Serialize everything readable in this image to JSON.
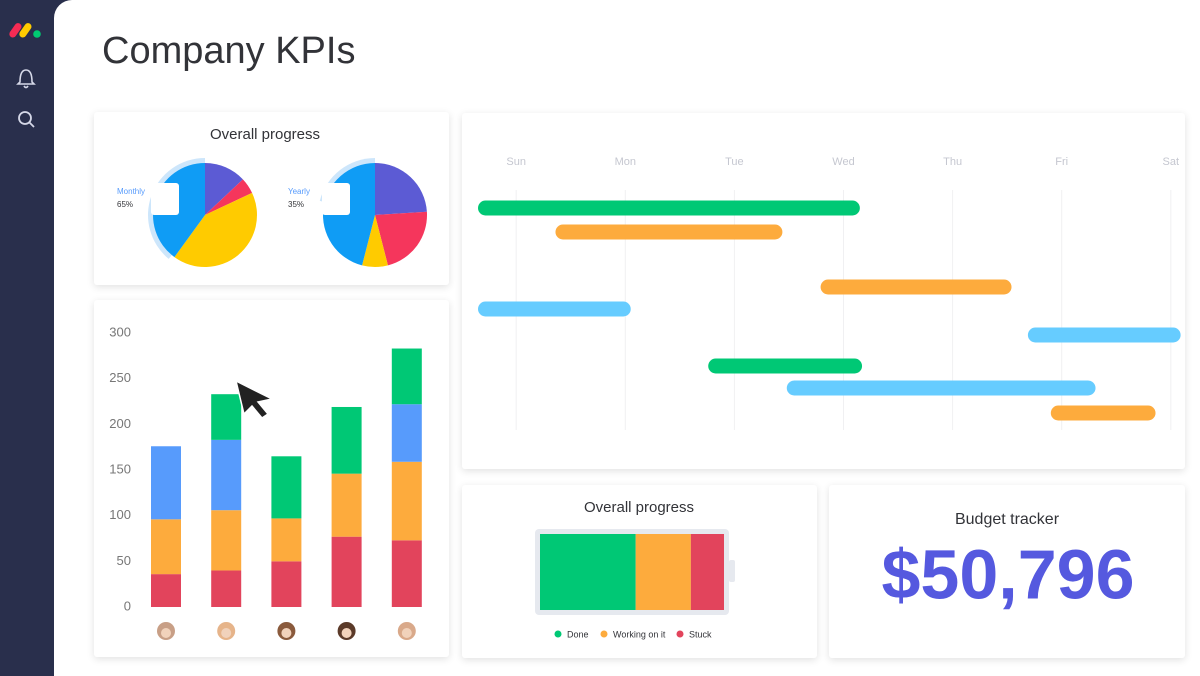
{
  "page_title": "Company KPIs",
  "chart_data": [
    {
      "type": "pie",
      "title": "Overall progress",
      "name": "Monthly",
      "summary": {
        "value": 65,
        "label": "65%"
      },
      "values": [
        13,
        5,
        42,
        40
      ],
      "colors": [
        "#5c5bd4",
        "#f5365c",
        "#ffcb00",
        "#0f9cf5"
      ]
    },
    {
      "type": "pie",
      "name": "Yearly",
      "summary": {
        "value": 35,
        "label": "35%"
      },
      "values": [
        24,
        22,
        8,
        46
      ],
      "colors": [
        "#5c5bd4",
        "#f5365c",
        "#ffcb00",
        "#0f9cf5"
      ]
    },
    {
      "type": "bar",
      "stacked": true,
      "categories": [
        null,
        null,
        null,
        null,
        null
      ],
      "series": [
        {
          "color": "#e2445c",
          "values": [
            36,
            40,
            50,
            77,
            73
          ]
        },
        {
          "color": "#fdab3d",
          "values": [
            60,
            66,
            47,
            69,
            86
          ]
        },
        {
          "color": "#579bfc",
          "values": [
            80,
            77,
            0,
            0,
            63
          ]
        },
        {
          "color": "#00c875",
          "values": [
            0,
            50,
            68,
            73,
            61
          ]
        }
      ],
      "ylim": [
        0,
        300
      ],
      "yticks": [
        0,
        50,
        100,
        150,
        200,
        250,
        300
      ]
    },
    {
      "type": "gantt",
      "xlim": [
        -0.35,
        6.13
      ],
      "xticks": [
        {
          "value": 0,
          "label": "Sun"
        },
        {
          "value": 1,
          "label": "Mon"
        },
        {
          "value": 2,
          "label": "Tue"
        },
        {
          "value": 3,
          "label": "Wed"
        },
        {
          "value": 4,
          "label": "Thu"
        },
        {
          "value": 5,
          "label": "Fri"
        },
        {
          "value": 6,
          "label": "Sat"
        }
      ],
      "tasks": [
        {
          "start": -0.35,
          "end": 3.15,
          "color": "#00c875"
        },
        {
          "start": 0.36,
          "end": 2.44,
          "color": "#fdab3d"
        },
        {
          "start": 2.79,
          "end": 4.54,
          "color": "#fdab3d"
        },
        {
          "start": -0.35,
          "end": 1.05,
          "color": "#66ccff"
        },
        {
          "start": 4.69,
          "end": 6.09,
          "color": "#66ccff"
        },
        {
          "start": 1.76,
          "end": 3.17,
          "color": "#00c875"
        },
        {
          "start": 2.48,
          "end": 5.31,
          "color": "#66ccff"
        },
        {
          "start": 4.9,
          "end": 5.86,
          "color": "#fdab3d"
        }
      ]
    },
    {
      "type": "battery",
      "title": "Overall progress",
      "xlim": [
        0,
        100
      ],
      "series": [
        {
          "name": "Done",
          "color": "#00c875",
          "values": [
            52
          ]
        },
        {
          "name": "Working on it",
          "color": "#fdab3d",
          "values": [
            30
          ]
        },
        {
          "name": "Stuck",
          "color": "#e2445c",
          "values": [
            18
          ]
        }
      ]
    }
  ],
  "budget": {
    "title": "Budget tracker",
    "amount": {
      "value": 50796,
      "label": "$50,796"
    }
  }
}
